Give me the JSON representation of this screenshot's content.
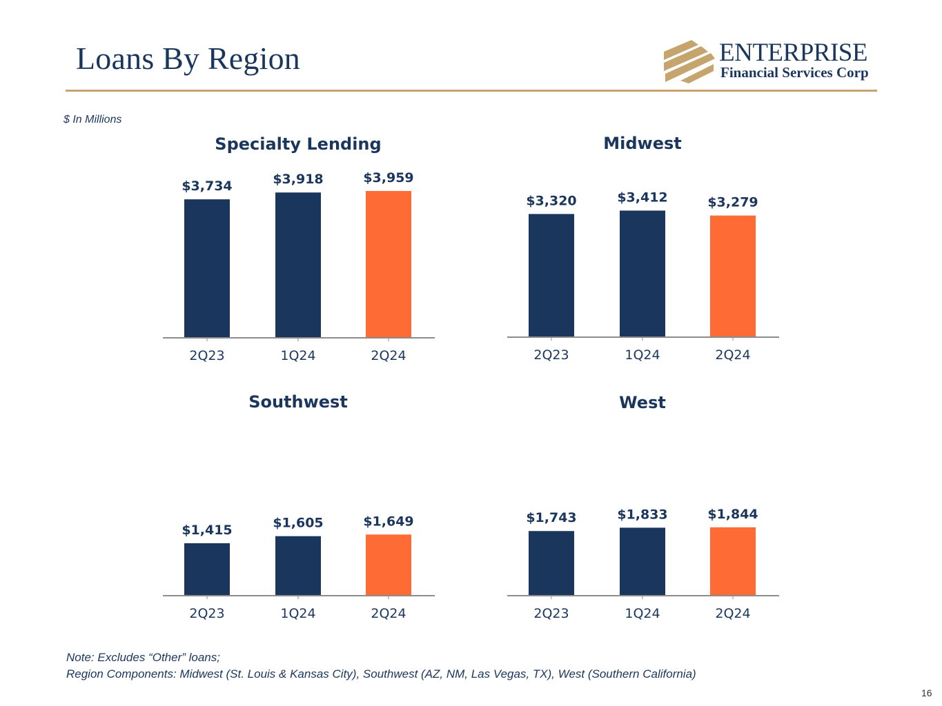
{
  "header": {
    "title": "Loans By Region",
    "logo_name": "ENTERPRISE",
    "logo_sub": "Financial Services Corp"
  },
  "units_note": "$ In Millions",
  "footnote": {
    "line1": "Note: Excludes “Other” loans;",
    "line2": "Region Components: Midwest (St. Louis & Kansas City), Southwest (AZ, NM, Las Vegas, TX), West (Southern California)"
  },
  "page_number": "16",
  "colors": {
    "navy": "#1b365d",
    "highlight": "#ff6b35",
    "gold": "#c5a46d",
    "axis": "#8c8c8c"
  },
  "chart_data": [
    {
      "type": "bar",
      "title": "Specialty Lending",
      "categories": [
        "2Q23",
        "1Q24",
        "2Q24"
      ],
      "values": [
        3734,
        3918,
        3959
      ],
      "labels": [
        "$3,734",
        "$3,918",
        "$3,959"
      ],
      "highlight_index": 2
    },
    {
      "type": "bar",
      "title": "Midwest",
      "categories": [
        "2Q23",
        "1Q24",
        "2Q24"
      ],
      "values": [
        3320,
        3412,
        3279
      ],
      "labels": [
        "$3,320",
        "$3,412",
        "$3,279"
      ],
      "highlight_index": 2
    },
    {
      "type": "bar",
      "title": "Southwest",
      "categories": [
        "2Q23",
        "1Q24",
        "2Q24"
      ],
      "values": [
        1415,
        1605,
        1649
      ],
      "labels": [
        "$1,415",
        "$1,605",
        "$1,649"
      ],
      "highlight_index": 2
    },
    {
      "type": "bar",
      "title": "West",
      "categories": [
        "2Q23",
        "1Q24",
        "2Q24"
      ],
      "values": [
        1743,
        1833,
        1844
      ],
      "labels": [
        "$1,743",
        "$1,833",
        "$1,844"
      ],
      "highlight_index": 2
    }
  ]
}
